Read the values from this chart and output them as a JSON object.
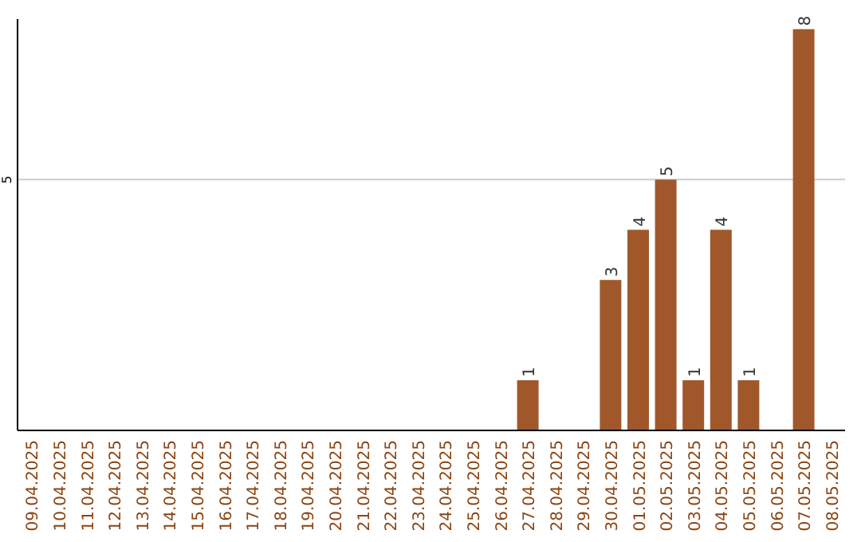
{
  "chart_data": {
    "type": "bar",
    "categories": [
      "09.04.2025",
      "10.04.2025",
      "11.04.2025",
      "12.04.2025",
      "13.04.2025",
      "14.04.2025",
      "15.04.2025",
      "16.04.2025",
      "17.04.2025",
      "18.04.2025",
      "19.04.2025",
      "20.04.2025",
      "21.04.2025",
      "22.04.2025",
      "23.04.2025",
      "24.04.2025",
      "25.04.2025",
      "26.04.2025",
      "27.04.2025",
      "28.04.2025",
      "29.04.2025",
      "30.04.2025",
      "01.05.2025",
      "02.05.2025",
      "03.05.2025",
      "04.05.2025",
      "05.05.2025",
      "06.05.2025",
      "07.05.2025",
      "08.05.2025"
    ],
    "values": [
      null,
      null,
      null,
      null,
      null,
      null,
      null,
      null,
      null,
      null,
      null,
      null,
      null,
      null,
      null,
      null,
      null,
      null,
      1,
      null,
      null,
      3,
      4,
      5,
      1,
      4,
      1,
      null,
      8,
      null
    ],
    "data_labels": true,
    "color": "#a0582b",
    "ylim": [
      0,
      8.2
    ],
    "yticks": [
      5
    ],
    "grid": "y"
  }
}
